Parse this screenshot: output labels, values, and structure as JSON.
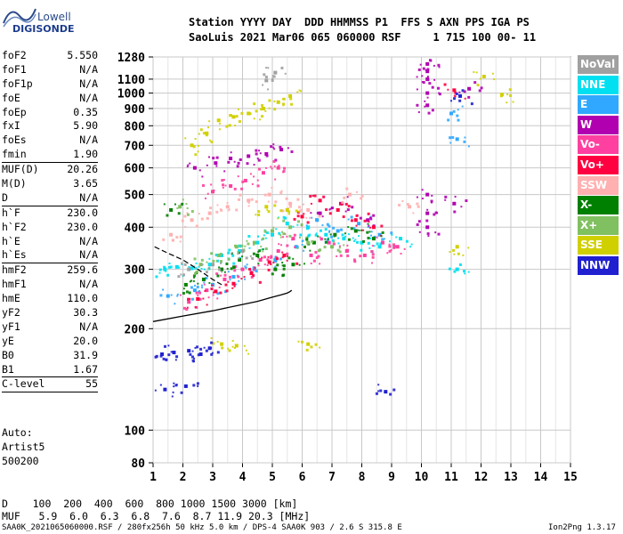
{
  "logo": {
    "line1": "Lowell",
    "line2": "DIGISONDE"
  },
  "header": {
    "line1": "Station YYYY DAY  DDD HHMMSS P1  FFS S AXN PPS IGA PS",
    "line2": "SaoLuis 2021 Mar06 065 060000 RSF     1 715 100 00- 11"
  },
  "params": [
    {
      "k": "foF2",
      "v": "5.550"
    },
    {
      "k": "foF1",
      "v": "N/A"
    },
    {
      "k": "foF1p",
      "v": "N/A"
    },
    {
      "k": "foE",
      "v": "N/A"
    },
    {
      "k": "foEp",
      "v": "0.35"
    },
    {
      "k": "fxI",
      "v": "5.90"
    },
    {
      "k": "foEs",
      "v": "N/A"
    },
    {
      "k": "fmin",
      "v": "1.90",
      "sep": true
    },
    {
      "k": "MUF(D)",
      "v": "20.26"
    },
    {
      "k": "M(D)",
      "v": "3.65"
    },
    {
      "k": "D",
      "v": "N/A",
      "sep": true
    },
    {
      "k": "h`F",
      "v": "230.0"
    },
    {
      "k": "h`F2",
      "v": "230.0"
    },
    {
      "k": "h`E",
      "v": "N/A"
    },
    {
      "k": "h`Es",
      "v": "N/A",
      "sep": true
    },
    {
      "k": "hmF2",
      "v": "259.6"
    },
    {
      "k": "hmF1",
      "v": "N/A"
    },
    {
      "k": "hmE",
      "v": "110.0"
    },
    {
      "k": "yF2",
      "v": "30.3"
    },
    {
      "k": "yF1",
      "v": "N/A"
    },
    {
      "k": "yE",
      "v": "20.0"
    },
    {
      "k": "B0",
      "v": "31.9"
    },
    {
      "k": "B1",
      "v": "1.67",
      "sep": true
    },
    {
      "k": "C-level",
      "v": "55",
      "sep": true
    }
  ],
  "scaler": {
    "line1": "Auto:",
    "line2": "Artist5",
    "line3": "500200"
  },
  "legend": [
    {
      "label": "NoVal",
      "color": "#a0a0a0"
    },
    {
      "label": "NNE",
      "color": "#00e0f0"
    },
    {
      "label": "E",
      "color": "#30a8ff"
    },
    {
      "label": "W",
      "color": "#b000b0"
    },
    {
      "label": "Vo-",
      "color": "#ff40a0"
    },
    {
      "label": "Vo+",
      "color": "#ff0040"
    },
    {
      "label": "SSW",
      "color": "#ffb0b0"
    },
    {
      "label": "X-",
      "color": "#008000"
    },
    {
      "label": "X+",
      "color": "#80c060"
    },
    {
      "label": "SSE",
      "color": "#d0d000"
    },
    {
      "label": "NNW",
      "color": "#2020d0"
    }
  ],
  "dmuf": {
    "d_line": "D    100  200  400  600  800 1000 1500 3000 [km]",
    "muf_line": "MUF   5.9  6.0  6.3  6.8  7.6  8.7 11.9 20.3 [MHz]"
  },
  "footer": {
    "left": "SAA0K_2021065060000.RSF / 280fx256h 50 kHz 5.0 km / DPS-4 SAA0K 903 / 2.6 S 315.8 E",
    "right": "Ion2Png 1.3.17"
  },
  "chart_data": {
    "type": "scatter",
    "title": "",
    "xlabel": "",
    "ylabel": "",
    "xlim": [
      1,
      15
    ],
    "ylim": [
      80,
      1280
    ],
    "yscale": "log",
    "xticks": [
      1,
      2,
      3,
      4,
      5,
      6,
      7,
      8,
      9,
      10,
      11,
      12,
      13,
      14,
      15
    ],
    "yticks": [
      80,
      100,
      200,
      300,
      400,
      500,
      600,
      700,
      800,
      900,
      1000,
      1100,
      1280
    ],
    "grid": true,
    "profile_curve": {
      "x": [
        1.0,
        2.0,
        3.0,
        4.0,
        4.5,
        5.0,
        5.3,
        5.5,
        5.6,
        5.65
      ],
      "y": [
        210,
        218,
        226,
        236,
        241,
        248,
        252,
        255,
        258,
        260
      ]
    },
    "profile_curve2": {
      "x": [
        1.05,
        1.5,
        2.0,
        2.5,
        3.0,
        3.3
      ],
      "y": [
        350,
        335,
        320,
        300,
        280,
        270
      ]
    },
    "traces": [
      {
        "color": "#00e0f0",
        "points": [
          [
            1.4,
            300
          ],
          [
            1.8,
            305
          ],
          [
            2.3,
            302
          ],
          [
            2.9,
            310
          ],
          [
            3.3,
            330
          ],
          [
            3.9,
            340
          ],
          [
            4.5,
            360
          ],
          [
            5.0,
            380
          ],
          [
            5.5,
            410
          ],
          [
            6.2,
            400
          ],
          [
            6.8,
            380
          ],
          [
            7.4,
            370
          ],
          [
            8.0,
            360
          ],
          [
            8.6,
            350
          ],
          [
            9.3,
            370
          ],
          [
            11.2,
            300
          ]
        ]
      },
      {
        "color": "#30a8ff",
        "points": [
          [
            1.5,
            250
          ],
          [
            2.4,
            260
          ],
          [
            3.0,
            270
          ],
          [
            3.7,
            285
          ],
          [
            4.4,
            300
          ],
          [
            5.1,
            320
          ],
          [
            5.8,
            350
          ],
          [
            6.5,
            420
          ],
          [
            7.2,
            390
          ],
          [
            7.9,
            410
          ],
          [
            8.6,
            380
          ],
          [
            11.2,
            730
          ],
          [
            11.0,
            870
          ]
        ]
      },
      {
        "color": "#b000b0",
        "points": [
          [
            2.4,
            600
          ],
          [
            3.1,
            620
          ],
          [
            3.6,
            640
          ],
          [
            4.2,
            650
          ],
          [
            4.8,
            660
          ],
          [
            5.3,
            680
          ],
          [
            6.6,
            440
          ],
          [
            7.3,
            470
          ],
          [
            8.2,
            420
          ],
          [
            10.2,
            1220
          ],
          [
            10.2,
            1160
          ],
          [
            10.2,
            1100
          ],
          [
            10.2,
            1000
          ],
          [
            10.2,
            920
          ],
          [
            10.2,
            500
          ],
          [
            10.2,
            440
          ],
          [
            10.2,
            400
          ],
          [
            11.1,
            470
          ],
          [
            11.6,
            1030
          ]
        ]
      },
      {
        "color": "#ff40a0",
        "points": [
          [
            2.2,
            240
          ],
          [
            2.8,
            260
          ],
          [
            3.4,
            280
          ],
          [
            4.0,
            300
          ],
          [
            4.6,
            320
          ],
          [
            5.2,
            340
          ],
          [
            5.7,
            370
          ],
          [
            6.3,
            330
          ],
          [
            6.9,
            360
          ],
          [
            7.5,
            340
          ],
          [
            8.1,
            330
          ],
          [
            8.7,
            360
          ],
          [
            9.2,
            350
          ],
          [
            3.0,
            510
          ],
          [
            3.6,
            530
          ],
          [
            4.1,
            550
          ],
          [
            4.7,
            580
          ],
          [
            5.2,
            600
          ]
        ]
      },
      {
        "color": "#ff0040",
        "points": [
          [
            2.5,
            245
          ],
          [
            3.1,
            258
          ],
          [
            3.7,
            272
          ],
          [
            4.3,
            292
          ],
          [
            4.9,
            315
          ],
          [
            5.4,
            330
          ],
          [
            6.0,
            430
          ],
          [
            6.6,
            480
          ],
          [
            7.2,
            450
          ],
          [
            7.8,
            420
          ],
          [
            8.4,
            400
          ],
          [
            11.1,
            1020
          ]
        ]
      },
      {
        "color": "#ffb0b0",
        "points": [
          [
            1.6,
            380
          ],
          [
            2.3,
            420
          ],
          [
            2.9,
            440
          ],
          [
            3.5,
            460
          ],
          [
            4.2,
            480
          ],
          [
            4.9,
            500
          ],
          [
            5.6,
            470
          ],
          [
            6.2,
            450
          ],
          [
            7.6,
            500
          ],
          [
            9.6,
            460
          ]
        ]
      },
      {
        "color": "#008000",
        "points": [
          [
            1.6,
            450
          ],
          [
            2.1,
            270
          ],
          [
            2.7,
            280
          ],
          [
            3.3,
            300
          ],
          [
            3.9,
            320
          ],
          [
            4.5,
            330
          ],
          [
            5.1,
            300
          ],
          [
            5.7,
            310
          ],
          [
            6.4,
            360
          ],
          [
            7.1,
            380
          ],
          [
            7.8,
            390
          ],
          [
            8.4,
            370
          ]
        ]
      },
      {
        "color": "#80c060",
        "points": [
          [
            1.9,
            460
          ],
          [
            2.6,
            310
          ],
          [
            3.2,
            330
          ],
          [
            3.8,
            350
          ],
          [
            4.4,
            360
          ],
          [
            5.0,
            390
          ],
          [
            5.6,
            400
          ],
          [
            6.2,
            360
          ],
          [
            7.0,
            350
          ]
        ]
      },
      {
        "color": "#d0d000",
        "points": [
          [
            2.3,
            700
          ],
          [
            2.8,
            760
          ],
          [
            3.2,
            830
          ],
          [
            3.7,
            850
          ],
          [
            4.2,
            870
          ],
          [
            4.7,
            900
          ],
          [
            5.2,
            940
          ],
          [
            5.6,
            980
          ],
          [
            5.5,
            450
          ],
          [
            4.8,
            460
          ],
          [
            3.3,
            180
          ],
          [
            3.8,
            178
          ],
          [
            6.2,
            180
          ],
          [
            11.2,
            350
          ],
          [
            12.1,
            1120
          ],
          [
            12.7,
            990
          ]
        ]
      },
      {
        "color": "#2020d0",
        "points": [
          [
            1.3,
            168
          ],
          [
            1.7,
            170
          ],
          [
            2.2,
            172
          ],
          [
            2.6,
            168
          ],
          [
            2.9,
            175
          ],
          [
            1.4,
            132
          ],
          [
            2.1,
            135
          ],
          [
            8.8,
            130
          ],
          [
            11.3,
            980
          ]
        ]
      },
      {
        "color": "#a0a0a0",
        "points": [
          [
            2.2,
            300
          ],
          [
            3.0,
            310
          ],
          [
            4.0,
            340
          ],
          [
            4.8,
            1090
          ],
          [
            5.1,
            1150
          ]
        ]
      }
    ]
  }
}
